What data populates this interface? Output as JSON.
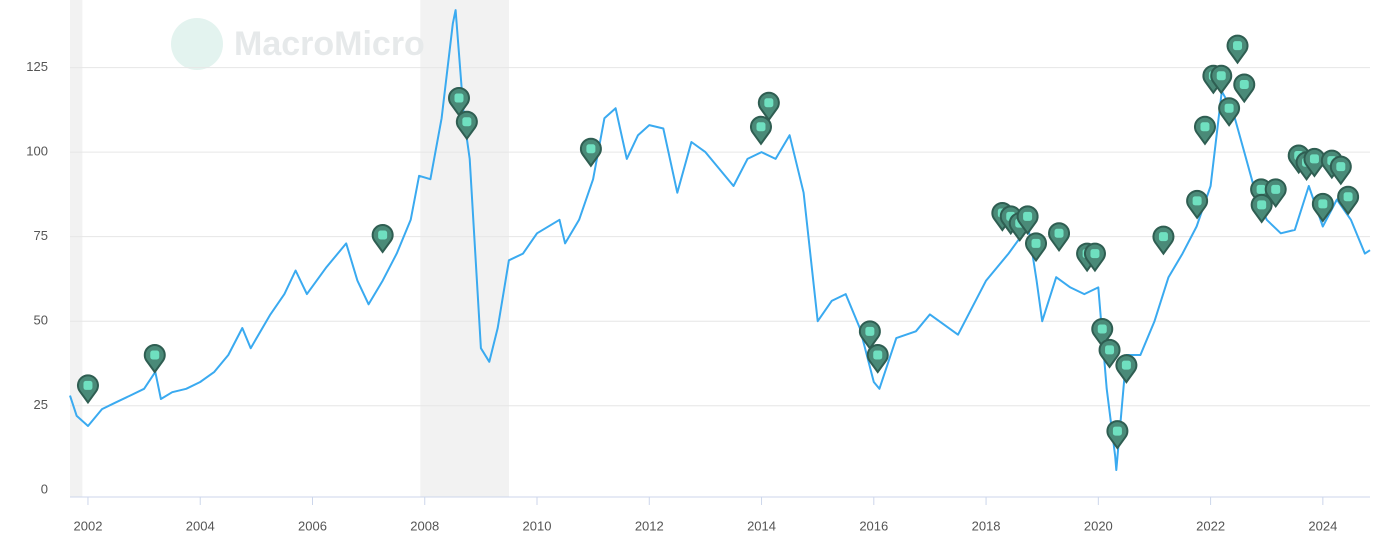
{
  "chart_data": {
    "type": "line",
    "watermark": "MacroMicro",
    "x": [
      2001.68,
      2001.8,
      2002.0,
      2002.25,
      2002.5,
      2002.75,
      2003.0,
      2003.2,
      2003.3,
      2003.5,
      2003.75,
      2004.0,
      2004.25,
      2004.5,
      2004.75,
      2004.9,
      2005.25,
      2005.5,
      2005.7,
      2005.9,
      2006.25,
      2006.6,
      2006.8,
      2007.0,
      2007.25,
      2007.5,
      2007.75,
      2007.9,
      2008.1,
      2008.3,
      2008.5,
      2008.55,
      2008.7,
      2008.8,
      2008.9,
      2009.0,
      2009.15,
      2009.3,
      2009.5,
      2009.75,
      2010.0,
      2010.4,
      2010.5,
      2010.75,
      2011.0,
      2011.2,
      2011.4,
      2011.6,
      2011.8,
      2012.0,
      2012.25,
      2012.5,
      2012.75,
      2013.0,
      2013.25,
      2013.5,
      2013.75,
      2014.0,
      2014.25,
      2014.5,
      2014.75,
      2015.0,
      2015.25,
      2015.5,
      2015.75,
      2016.0,
      2016.1,
      2016.4,
      2016.75,
      2017.0,
      2017.5,
      2017.75,
      2018.0,
      2018.4,
      2018.75,
      2018.9,
      2019.0,
      2019.25,
      2019.5,
      2019.75,
      2020.0,
      2020.15,
      2020.3,
      2020.32,
      2020.5,
      2020.75,
      2021.0,
      2021.25,
      2021.5,
      2021.75,
      2022.0,
      2022.2,
      2022.4,
      2022.6,
      2022.8,
      2023.0,
      2023.25,
      2023.5,
      2023.75,
      2024.0,
      2024.25,
      2024.5,
      2024.75,
      2024.84
    ],
    "values": [
      28,
      22,
      19,
      24,
      26,
      28,
      30,
      35,
      27,
      29,
      30,
      32,
      35,
      40,
      48,
      42,
      52,
      58,
      65,
      58,
      66,
      73,
      62,
      55,
      62,
      70,
      80,
      93,
      92,
      110,
      138,
      142,
      110,
      98,
      70,
      42,
      38,
      48,
      68,
      70,
      76,
      80,
      73,
      80,
      92,
      110,
      113,
      98,
      105,
      108,
      107,
      88,
      103,
      100,
      95,
      90,
      98,
      100,
      98,
      105,
      88,
      50,
      56,
      58,
      48,
      32,
      30,
      45,
      47,
      52,
      46,
      54,
      62,
      70,
      78,
      62,
      50,
      63,
      60,
      58,
      60,
      30,
      10,
      6,
      40,
      40,
      50,
      63,
      70,
      78,
      90,
      118,
      112,
      100,
      88,
      80,
      76,
      77,
      90,
      78,
      86,
      80,
      70,
      71
    ],
    "color": "#3aaaf0",
    "markers": {
      "x": [
        2002.0,
        2003.19,
        2007.25,
        2008.61,
        2008.75,
        2010.96,
        2013.99,
        2014.13,
        2015.93,
        2016.07,
        2018.29,
        2018.44,
        2018.6,
        2018.74,
        2018.89,
        2019.3,
        2019.8,
        2019.94,
        2020.07,
        2020.2,
        2020.34,
        2020.5,
        2021.16,
        2021.76,
        2021.9,
        2022.05,
        2022.19,
        2022.33,
        2022.48,
        2022.6,
        2022.9,
        2022.91,
        2023.16,
        2023.57,
        2023.71,
        2023.85,
        2024.0,
        2024.16,
        2024.32,
        2024.45
      ],
      "values": [
        31,
        40,
        75.5,
        116,
        109,
        101,
        107.5,
        114.6,
        47,
        40,
        82,
        81,
        79,
        81,
        73,
        76,
        70,
        70,
        47.7,
        41.5,
        17.5,
        37,
        75,
        85.6,
        107.5,
        122.6,
        122.6,
        113,
        131.5,
        120,
        89,
        84.4,
        89,
        99,
        97,
        98,
        84.7,
        97.5,
        95.7,
        86.8
      ],
      "color": "#4a8a78"
    },
    "shaded_ranges": [
      [
        2001.68,
        2001.9
      ],
      [
        2007.92,
        2009.5
      ]
    ],
    "shade_color": "#f2f2f2",
    "xlim": [
      2001.68,
      2024.84
    ],
    "ylim": [
      -2,
      145
    ],
    "xticks": [
      2002,
      2004,
      2006,
      2008,
      2010,
      2012,
      2014,
      2016,
      2018,
      2020,
      2022,
      2024
    ],
    "yticks": [
      0,
      25,
      50,
      75,
      100,
      125
    ],
    "grid": true
  }
}
